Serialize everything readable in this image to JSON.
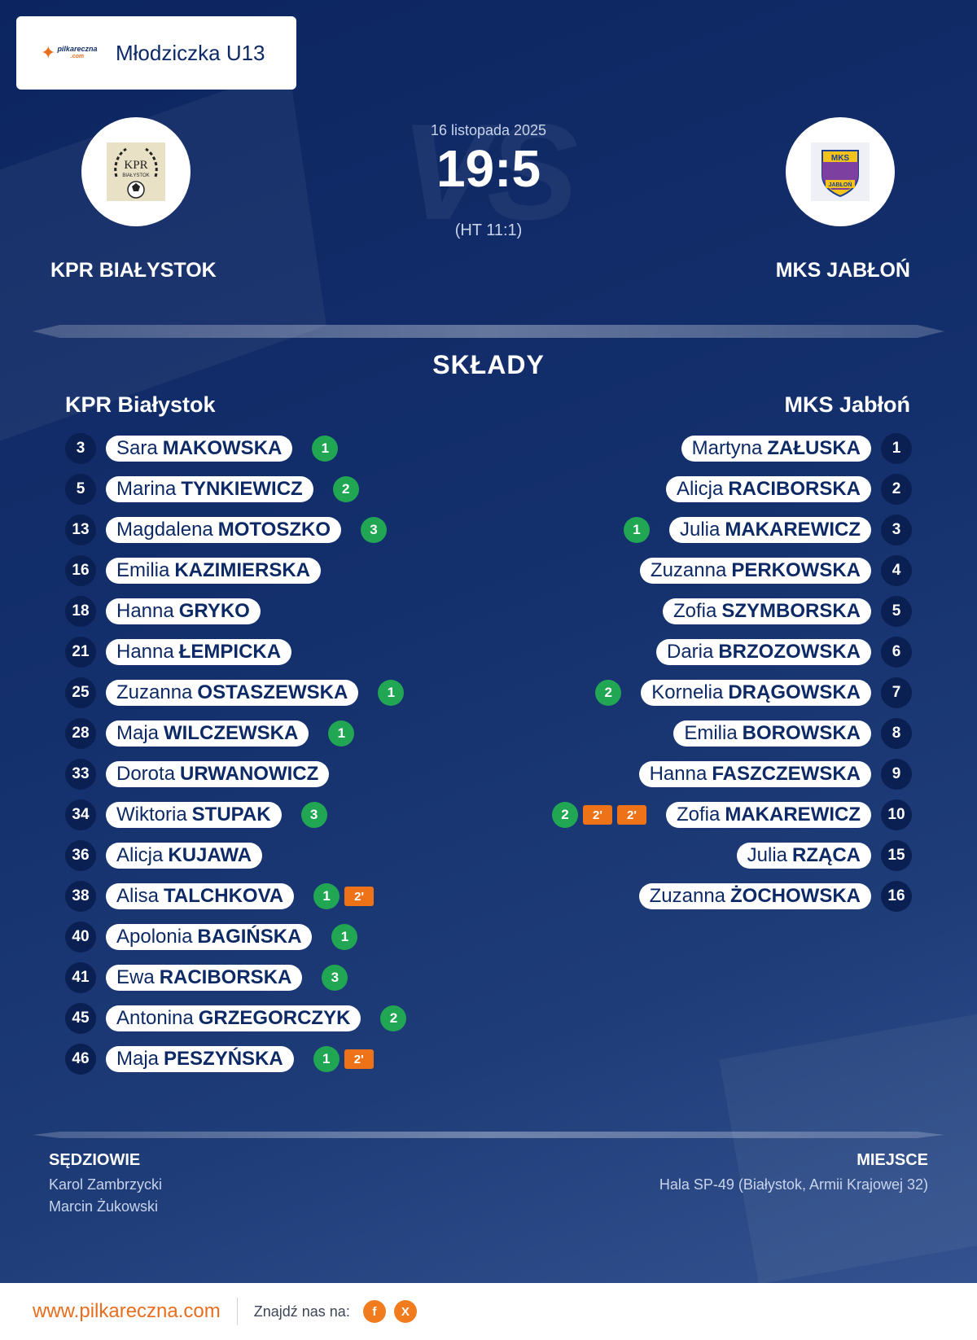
{
  "header": {
    "brand_name": "pilkareczna",
    "brand_domain": ".com",
    "category": "Młodziczka U13"
  },
  "match": {
    "date": "16 listopada 2025",
    "score": "19:5",
    "halftime": "(HT 11:1)",
    "vs_watermark": "VS",
    "home_name": "KPR BIAŁYSTOK",
    "away_name": "MKS JABŁOŃ",
    "home_crest_text": "KPR",
    "home_crest_subtext": "BIAŁYSTOK",
    "away_crest_text": "MKS",
    "away_crest_subtext": "JABŁOŃ"
  },
  "lineups": {
    "title": "SKŁADY",
    "home_title": "KPR Białystok",
    "away_title": "MKS Jabłoń",
    "home": [
      {
        "number": "3",
        "first": "Sara",
        "last": "MAKOWSKA",
        "goals": "1",
        "suspensions": []
      },
      {
        "number": "5",
        "first": "Marina",
        "last": "TYNKIEWICZ",
        "goals": "2",
        "suspensions": []
      },
      {
        "number": "13",
        "first": "Magdalena",
        "last": "MOTOSZKO",
        "goals": "3",
        "suspensions": []
      },
      {
        "number": "16",
        "first": "Emilia",
        "last": "KAZIMIERSKA",
        "goals": "",
        "suspensions": []
      },
      {
        "number": "18",
        "first": "Hanna",
        "last": "GRYKO",
        "goals": "",
        "suspensions": []
      },
      {
        "number": "21",
        "first": "Hanna",
        "last": "ŁEMPICKA",
        "goals": "",
        "suspensions": []
      },
      {
        "number": "25",
        "first": "Zuzanna",
        "last": "OSTASZEWSKA",
        "goals": "1",
        "suspensions": []
      },
      {
        "number": "28",
        "first": "Maja",
        "last": "WILCZEWSKA",
        "goals": "1",
        "suspensions": []
      },
      {
        "number": "33",
        "first": "Dorota",
        "last": "URWANOWICZ",
        "goals": "",
        "suspensions": []
      },
      {
        "number": "34",
        "first": "Wiktoria",
        "last": "STUPAK",
        "goals": "3",
        "suspensions": []
      },
      {
        "number": "36",
        "first": "Alicja",
        "last": "KUJAWA",
        "goals": "",
        "suspensions": []
      },
      {
        "number": "38",
        "first": "Alisa",
        "last": "TALCHKOVA",
        "goals": "1",
        "suspensions": [
          "2'"
        ]
      },
      {
        "number": "40",
        "first": "Apolonia",
        "last": "BAGIŃSKA",
        "goals": "1",
        "suspensions": []
      },
      {
        "number": "41",
        "first": "Ewa",
        "last": "RACIBORSKA",
        "goals": "3",
        "suspensions": []
      },
      {
        "number": "45",
        "first": "Antonina",
        "last": "GRZEGORCZYK",
        "goals": "2",
        "suspensions": []
      },
      {
        "number": "46",
        "first": "Maja",
        "last": "PESZYŃSKA",
        "goals": "1",
        "suspensions": [
          "2'"
        ]
      }
    ],
    "away": [
      {
        "number": "1",
        "first": "Martyna",
        "last": "ZAŁUSKA",
        "goals": "",
        "suspensions": []
      },
      {
        "number": "2",
        "first": "Alicja",
        "last": "RACIBORSKA",
        "goals": "",
        "suspensions": []
      },
      {
        "number": "3",
        "first": "Julia",
        "last": "MAKAREWICZ",
        "goals": "1",
        "suspensions": []
      },
      {
        "number": "4",
        "first": "Zuzanna",
        "last": "PERKOWSKA",
        "goals": "",
        "suspensions": []
      },
      {
        "number": "5",
        "first": "Zofia",
        "last": "SZYMBORSKA",
        "goals": "",
        "suspensions": []
      },
      {
        "number": "6",
        "first": "Daria",
        "last": "BRZOZOWSKA",
        "goals": "",
        "suspensions": []
      },
      {
        "number": "7",
        "first": "Kornelia",
        "last": "DRĄGOWSKA",
        "goals": "2",
        "suspensions": []
      },
      {
        "number": "8",
        "first": "Emilia",
        "last": "BOROWSKA",
        "goals": "",
        "suspensions": []
      },
      {
        "number": "9",
        "first": "Hanna",
        "last": "FASZCZEWSKA",
        "goals": "",
        "suspensions": []
      },
      {
        "number": "10",
        "first": "Zofia",
        "last": "MAKAREWICZ",
        "goals": "2",
        "suspensions": [
          "2'",
          "2'"
        ]
      },
      {
        "number": "15",
        "first": "Julia",
        "last": "RZĄCA",
        "goals": "",
        "suspensions": []
      },
      {
        "number": "16",
        "first": "Zuzanna",
        "last": "ŻOCHOWSKA",
        "goals": "",
        "suspensions": []
      }
    ]
  },
  "officials": {
    "referees_title": "SĘDZIOWIE",
    "referees": [
      "Karol Zambrzycki",
      "Marcin Żukowski"
    ],
    "venue_title": "MIEJSCE",
    "venue": "Hala SP-49 (Białystok, Armii Krajowej 32)"
  },
  "footer": {
    "url": "www.pilkareczna.com",
    "find_us": "Znajdź nas na:",
    "social": [
      {
        "label": "f",
        "icon": "facebook-icon"
      },
      {
        "label": "X",
        "icon": "x-icon"
      }
    ]
  },
  "colors": {
    "background_dark": "#0c2561",
    "accent_orange": "#ee7218",
    "goal_green": "#21a653",
    "text_navy": "#0d2a66"
  }
}
